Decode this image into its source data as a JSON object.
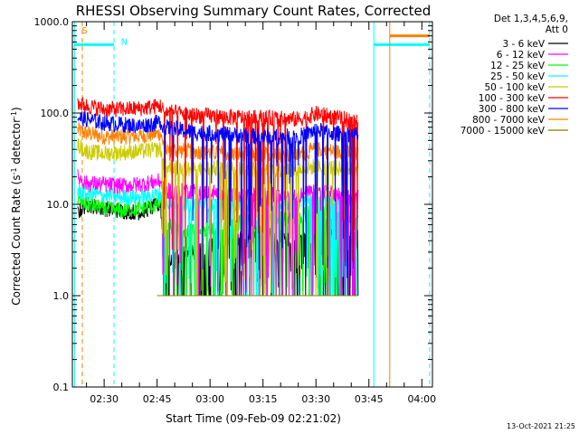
{
  "chart_data": {
    "type": "line",
    "title": "RHESSI Observing Summary Count Rates, Corrected",
    "xlabel": "Start Time (09-Feb-09 02:21:02)",
    "ylabel_parts": {
      "a": "Corrected Count Rate (s",
      "sup1": "-1",
      "b": " detector",
      "sup2": "-1",
      "c": ")"
    },
    "y_scale": "log",
    "ylim": [
      0.1,
      1000
    ],
    "xlim_minutes": [
      141,
      243
    ],
    "x_ticks": [
      {
        "minute": 150,
        "label": "02:30"
      },
      {
        "minute": 165,
        "label": "02:45"
      },
      {
        "minute": 180,
        "label": "03:00"
      },
      {
        "minute": 195,
        "label": "03:15"
      },
      {
        "minute": 210,
        "label": "03:30"
      },
      {
        "minute": 225,
        "label": "03:45"
      },
      {
        "minute": 240,
        "label": "04:00"
      }
    ],
    "y_ticks": [
      {
        "value": 1000,
        "label": "1000.0"
      },
      {
        "value": 100,
        "label": "100.0"
      },
      {
        "value": 10,
        "label": "10.0"
      },
      {
        "value": 1,
        "label": "1.0"
      },
      {
        "value": 0.1,
        "label": "0.1"
      }
    ],
    "legend_header": [
      "Det 1,3,4,5,6,9,",
      "Att 0"
    ],
    "legend_placement": "right",
    "series": [
      {
        "name": "3 - 6 keV",
        "color": "#000000",
        "t": [
          142.5,
          145,
          150,
          155,
          160,
          166,
          167,
          175,
          185,
          195,
          205,
          210,
          215,
          222
        ],
        "v": [
          8,
          10,
          9,
          8.5,
          8.2,
          10,
          2.5,
          3,
          4,
          5,
          4,
          7,
          5,
          4.5
        ]
      },
      {
        "name": "6 - 12 keV",
        "color": "#ff00ff",
        "t": [
          142.5,
          145,
          150,
          155,
          160,
          166,
          167,
          175,
          185,
          195,
          205,
          210,
          215,
          222
        ],
        "v": [
          20,
          17,
          16.5,
          16,
          16.5,
          18,
          14,
          14,
          13,
          12.5,
          12.5,
          14,
          13,
          12
        ]
      },
      {
        "name": "12 - 25 keV",
        "color": "#00ff00",
        "t": [
          142.5,
          145,
          150,
          155,
          160,
          166,
          167,
          175,
          185,
          195,
          205,
          210,
          215,
          222
        ],
        "v": [
          11,
          10,
          9,
          8.5,
          9,
          10,
          6,
          5,
          6,
          7,
          7,
          9,
          8,
          7
        ]
      },
      {
        "name": "25 - 50 keV",
        "color": "#00ffff",
        "t": [
          142.5,
          145,
          150,
          155,
          160,
          166,
          167,
          175,
          185,
          195,
          205,
          210,
          215,
          222
        ],
        "v": [
          14,
          13,
          12.5,
          12,
          12,
          13,
          11,
          10,
          10,
          10.5,
          10.5,
          12,
          11,
          11
        ]
      },
      {
        "name": "50 - 100 keV",
        "color": "#cccc00",
        "t": [
          142.5,
          145,
          150,
          155,
          160,
          166,
          167,
          175,
          185,
          195,
          205,
          210,
          215,
          222
        ],
        "v": [
          45,
          38,
          36,
          37,
          38,
          40,
          26,
          24,
          25,
          24,
          24,
          26,
          25,
          24
        ]
      },
      {
        "name": "100 - 300 keV",
        "color": "#ff0000",
        "t": [
          142.5,
          145,
          150,
          155,
          160,
          166,
          167,
          175,
          185,
          195,
          205,
          210,
          215,
          222
        ],
        "v": [
          130,
          120,
          110,
          110,
          112,
          120,
          105,
          95,
          90,
          88,
          85,
          98,
          90,
          80
        ]
      },
      {
        "name": "300 - 800 keV",
        "color": "#0000ff",
        "t": [
          142.5,
          145,
          150,
          155,
          160,
          166,
          167,
          175,
          185,
          195,
          205,
          210,
          215,
          222
        ],
        "v": [
          90,
          85,
          78,
          75,
          72,
          80,
          70,
          62,
          58,
          55,
          55,
          65,
          60,
          58
        ]
      },
      {
        "name": "800 - 7000 keV",
        "color": "#ff8000",
        "t": [
          142.5,
          145,
          150,
          155,
          160,
          166,
          167,
          175,
          185,
          195,
          205,
          210,
          215,
          222
        ],
        "v": [
          65,
          60,
          55,
          55,
          56,
          60,
          40,
          38,
          36,
          35,
          35,
          40,
          38,
          35
        ]
      },
      {
        "name": "7000 - 15000 keV",
        "color": "#808000",
        "t": [
          165,
          170,
          175,
          185,
          195,
          205,
          215,
          222
        ],
        "v": [
          1,
          1,
          1,
          1,
          1,
          1,
          1,
          1
        ]
      }
    ],
    "annotations": [
      {
        "label": "S",
        "color": "#ff8000",
        "minute": 142.1,
        "y": 800
      },
      {
        "label": "N",
        "color": "#00ffff",
        "minute": 153.2,
        "y": 600
      }
    ],
    "night_bar_color": "#00ffff",
    "saa_bar_color": "#ff8000",
    "timestamp": "13-Oct-2021 21:25"
  }
}
